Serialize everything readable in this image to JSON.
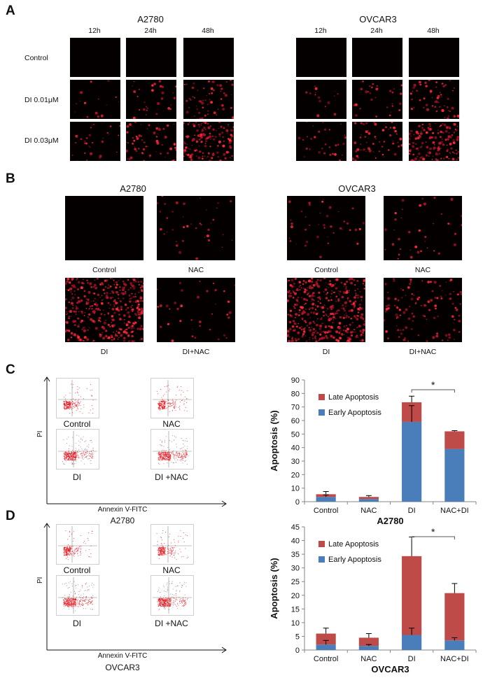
{
  "panelA": {
    "label": "A",
    "groups": [
      {
        "title": "A2780",
        "times": [
          "12h",
          "24h",
          "48h"
        ]
      },
      {
        "title": "OVCAR3",
        "times": [
          "12h",
          "24h",
          "48h"
        ]
      }
    ],
    "rows": [
      "Control",
      "DI 0.01μM",
      "DI 0.03μM"
    ],
    "density": [
      [
        0,
        0,
        0
      ],
      [
        1,
        2,
        4
      ],
      [
        2,
        4,
        10
      ]
    ]
  },
  "panelB": {
    "label": "B",
    "groups": [
      {
        "title": "A2780",
        "labels": [
          "Control",
          "NAC",
          "DI",
          "DI+NAC"
        ]
      },
      {
        "title": "OVCAR3",
        "labels": [
          "Control",
          "NAC",
          "DI",
          "DI+NAC"
        ]
      }
    ],
    "density": [
      [
        0,
        1,
        11,
        1
      ],
      [
        1,
        1,
        12,
        3
      ]
    ]
  },
  "panelC": {
    "label": "C",
    "flow": {
      "labels": [
        "Control",
        "NAC",
        "DI",
        "DI +NAC"
      ],
      "yaxis": "PI",
      "xaxis": "Annexin V-FITC",
      "cell": "A2780"
    }
  },
  "panelD": {
    "label": "D",
    "flow": {
      "labels": [
        "Control",
        "NAC",
        "DI",
        "DI +NAC"
      ],
      "yaxis": "PI",
      "xaxis": "Annexin V-FITC",
      "cell": "OVCAR3"
    }
  },
  "chart_data": [
    {
      "type": "bar",
      "stacked": true,
      "categories": [
        "Control",
        "NAC",
        "DI",
        "NAC+DI"
      ],
      "series": [
        {
          "name": "Early Apoptosis",
          "values": [
            3.5,
            2,
            59,
            39
          ],
          "color": "#4a7ebb"
        },
        {
          "name": "Late Apoptosis",
          "values": [
            2,
            1.5,
            14.5,
            13
          ],
          "color": "#be4b48"
        }
      ],
      "error_top": [
        2,
        1,
        4.5,
        0.5
      ],
      "error_mid": [
        1.5,
        0,
        12,
        0
      ],
      "ylabel": "Apoptosis (%)",
      "xlabel": "A2780",
      "ylim": [
        0,
        90
      ],
      "yticks": [
        0,
        10,
        20,
        30,
        40,
        50,
        60,
        70,
        80,
        90
      ],
      "significance": "*",
      "legend": "inside-upper-left"
    },
    {
      "type": "bar",
      "stacked": true,
      "categories": [
        "Control",
        "NAC",
        "DI",
        "NAC+DI"
      ],
      "series": [
        {
          "name": "Early Apoptosis",
          "values": [
            2,
            1.5,
            5.5,
            3.5
          ],
          "color": "#4a7ebb"
        },
        {
          "name": "Late Apoptosis",
          "values": [
            4,
            3,
            28.8,
            17.3
          ],
          "color": "#be4b48"
        }
      ],
      "error_top": [
        2,
        1.5,
        7,
        3.5
      ],
      "error_mid": [
        1.5,
        0.5,
        2.5,
        1
      ],
      "ylabel": "Apoptosis (%)",
      "xlabel": "OVCAR3",
      "ylim": [
        0,
        45
      ],
      "yticks": [
        0,
        5,
        10,
        15,
        20,
        25,
        30,
        35,
        40,
        45
      ],
      "significance": "*",
      "legend": "inside-upper-left"
    }
  ]
}
